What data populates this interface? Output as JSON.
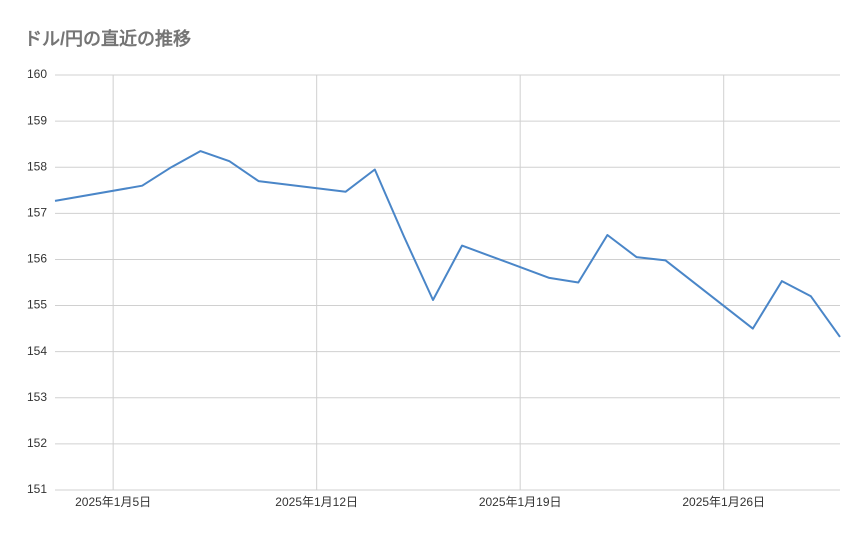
{
  "chart_data": {
    "type": "line",
    "title": "ドル/円の直近の推移",
    "x": [
      "2025-01-03",
      "2025-01-06",
      "2025-01-07",
      "2025-01-08",
      "2025-01-09",
      "2025-01-10",
      "2025-01-13",
      "2025-01-14",
      "2025-01-15",
      "2025-01-16",
      "2025-01-17",
      "2025-01-20",
      "2025-01-21",
      "2025-01-22",
      "2025-01-23",
      "2025-01-24",
      "2025-01-27",
      "2025-01-28",
      "2025-01-29",
      "2025-01-30"
    ],
    "values": [
      157.27,
      157.6,
      158.0,
      158.35,
      158.13,
      157.7,
      157.47,
      157.95,
      156.5,
      155.12,
      156.3,
      155.6,
      155.5,
      156.53,
      156.05,
      155.98,
      154.5,
      155.53,
      155.2,
      154.32
    ],
    "color": "#4a86c8",
    "xlim": [
      "2025-01-03",
      "2025-01-30"
    ],
    "xticks": [
      {
        "value": "2025-01-05",
        "label": "2025年1月5日"
      },
      {
        "value": "2025-01-12",
        "label": "2025年1月12日"
      },
      {
        "value": "2025-01-19",
        "label": "2025年1月19日"
      },
      {
        "value": "2025-01-26",
        "label": "2025年1月26日"
      }
    ],
    "ylim": [
      151,
      160
    ],
    "yticks": [
      151,
      152,
      153,
      154,
      155,
      156,
      157,
      158,
      159,
      160
    ],
    "grid": true
  }
}
